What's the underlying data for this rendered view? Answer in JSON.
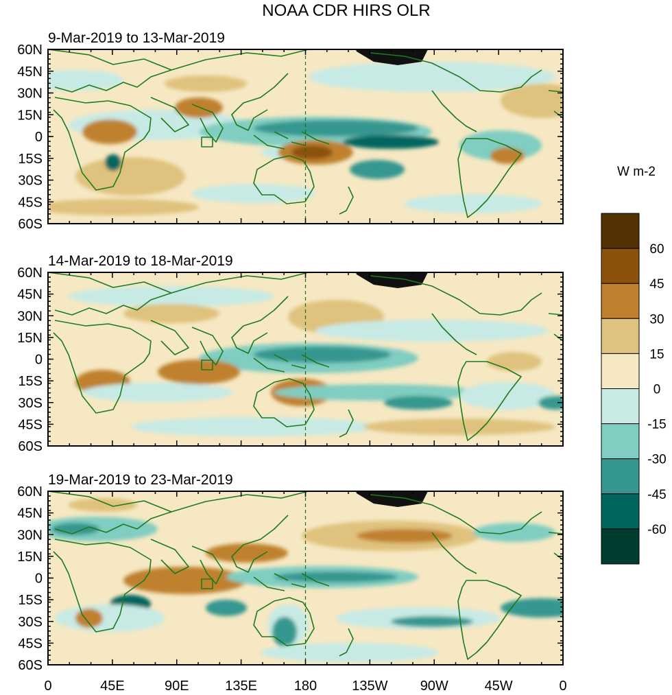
{
  "title": "NOAA CDR HIRS OLR",
  "colorbar": {
    "units": "W m-2",
    "levels": [
      "60",
      "45",
      "30",
      "15",
      "0",
      "-15",
      "-30",
      "-45",
      "-60"
    ],
    "colors_top_to_bottom": [
      "#543005",
      "#8c510a",
      "#bf812d",
      "#dfc27d",
      "#f6e8c3",
      "#c7eae5",
      "#80cdc1",
      "#35978f",
      "#01665e",
      "#003c30"
    ]
  },
  "axes": {
    "lat_labels": [
      "60N",
      "45N",
      "30N",
      "15N",
      "0",
      "15S",
      "30S",
      "45S",
      "60S"
    ],
    "lon_labels": [
      "0",
      "45E",
      "90E",
      "135E",
      "180",
      "135W",
      "90W",
      "45W",
      "0"
    ]
  },
  "panels": [
    {
      "period": "9-Mar-2019 to 13-Mar-2019"
    },
    {
      "period": "14-Mar-2019 to 18-Mar-2019"
    },
    {
      "period": "19-Mar-2019 to 23-Mar-2019"
    }
  ],
  "colors": {
    "coastline": "#1e7a1e",
    "masked_region": "#111111",
    "dateline": "#1e6a1e"
  }
}
